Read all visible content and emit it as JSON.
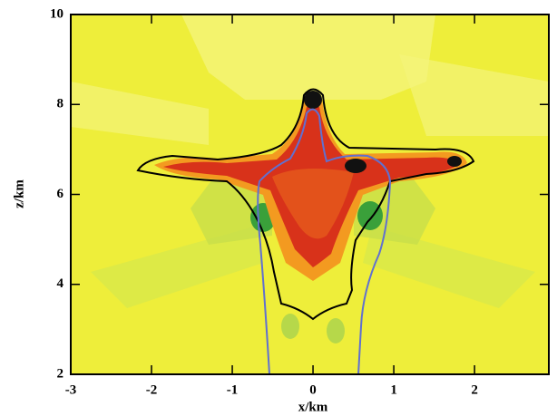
{
  "chart_data": {
    "type": "contour",
    "x_label": "x/km",
    "y_label": "z/km",
    "xlim": [
      -3,
      2.92
    ],
    "ylim": [
      2,
      10
    ],
    "xticks": [
      -3,
      -2,
      -1,
      0,
      1,
      2
    ],
    "yticks": [
      2,
      4,
      6,
      8,
      10
    ]
  }
}
